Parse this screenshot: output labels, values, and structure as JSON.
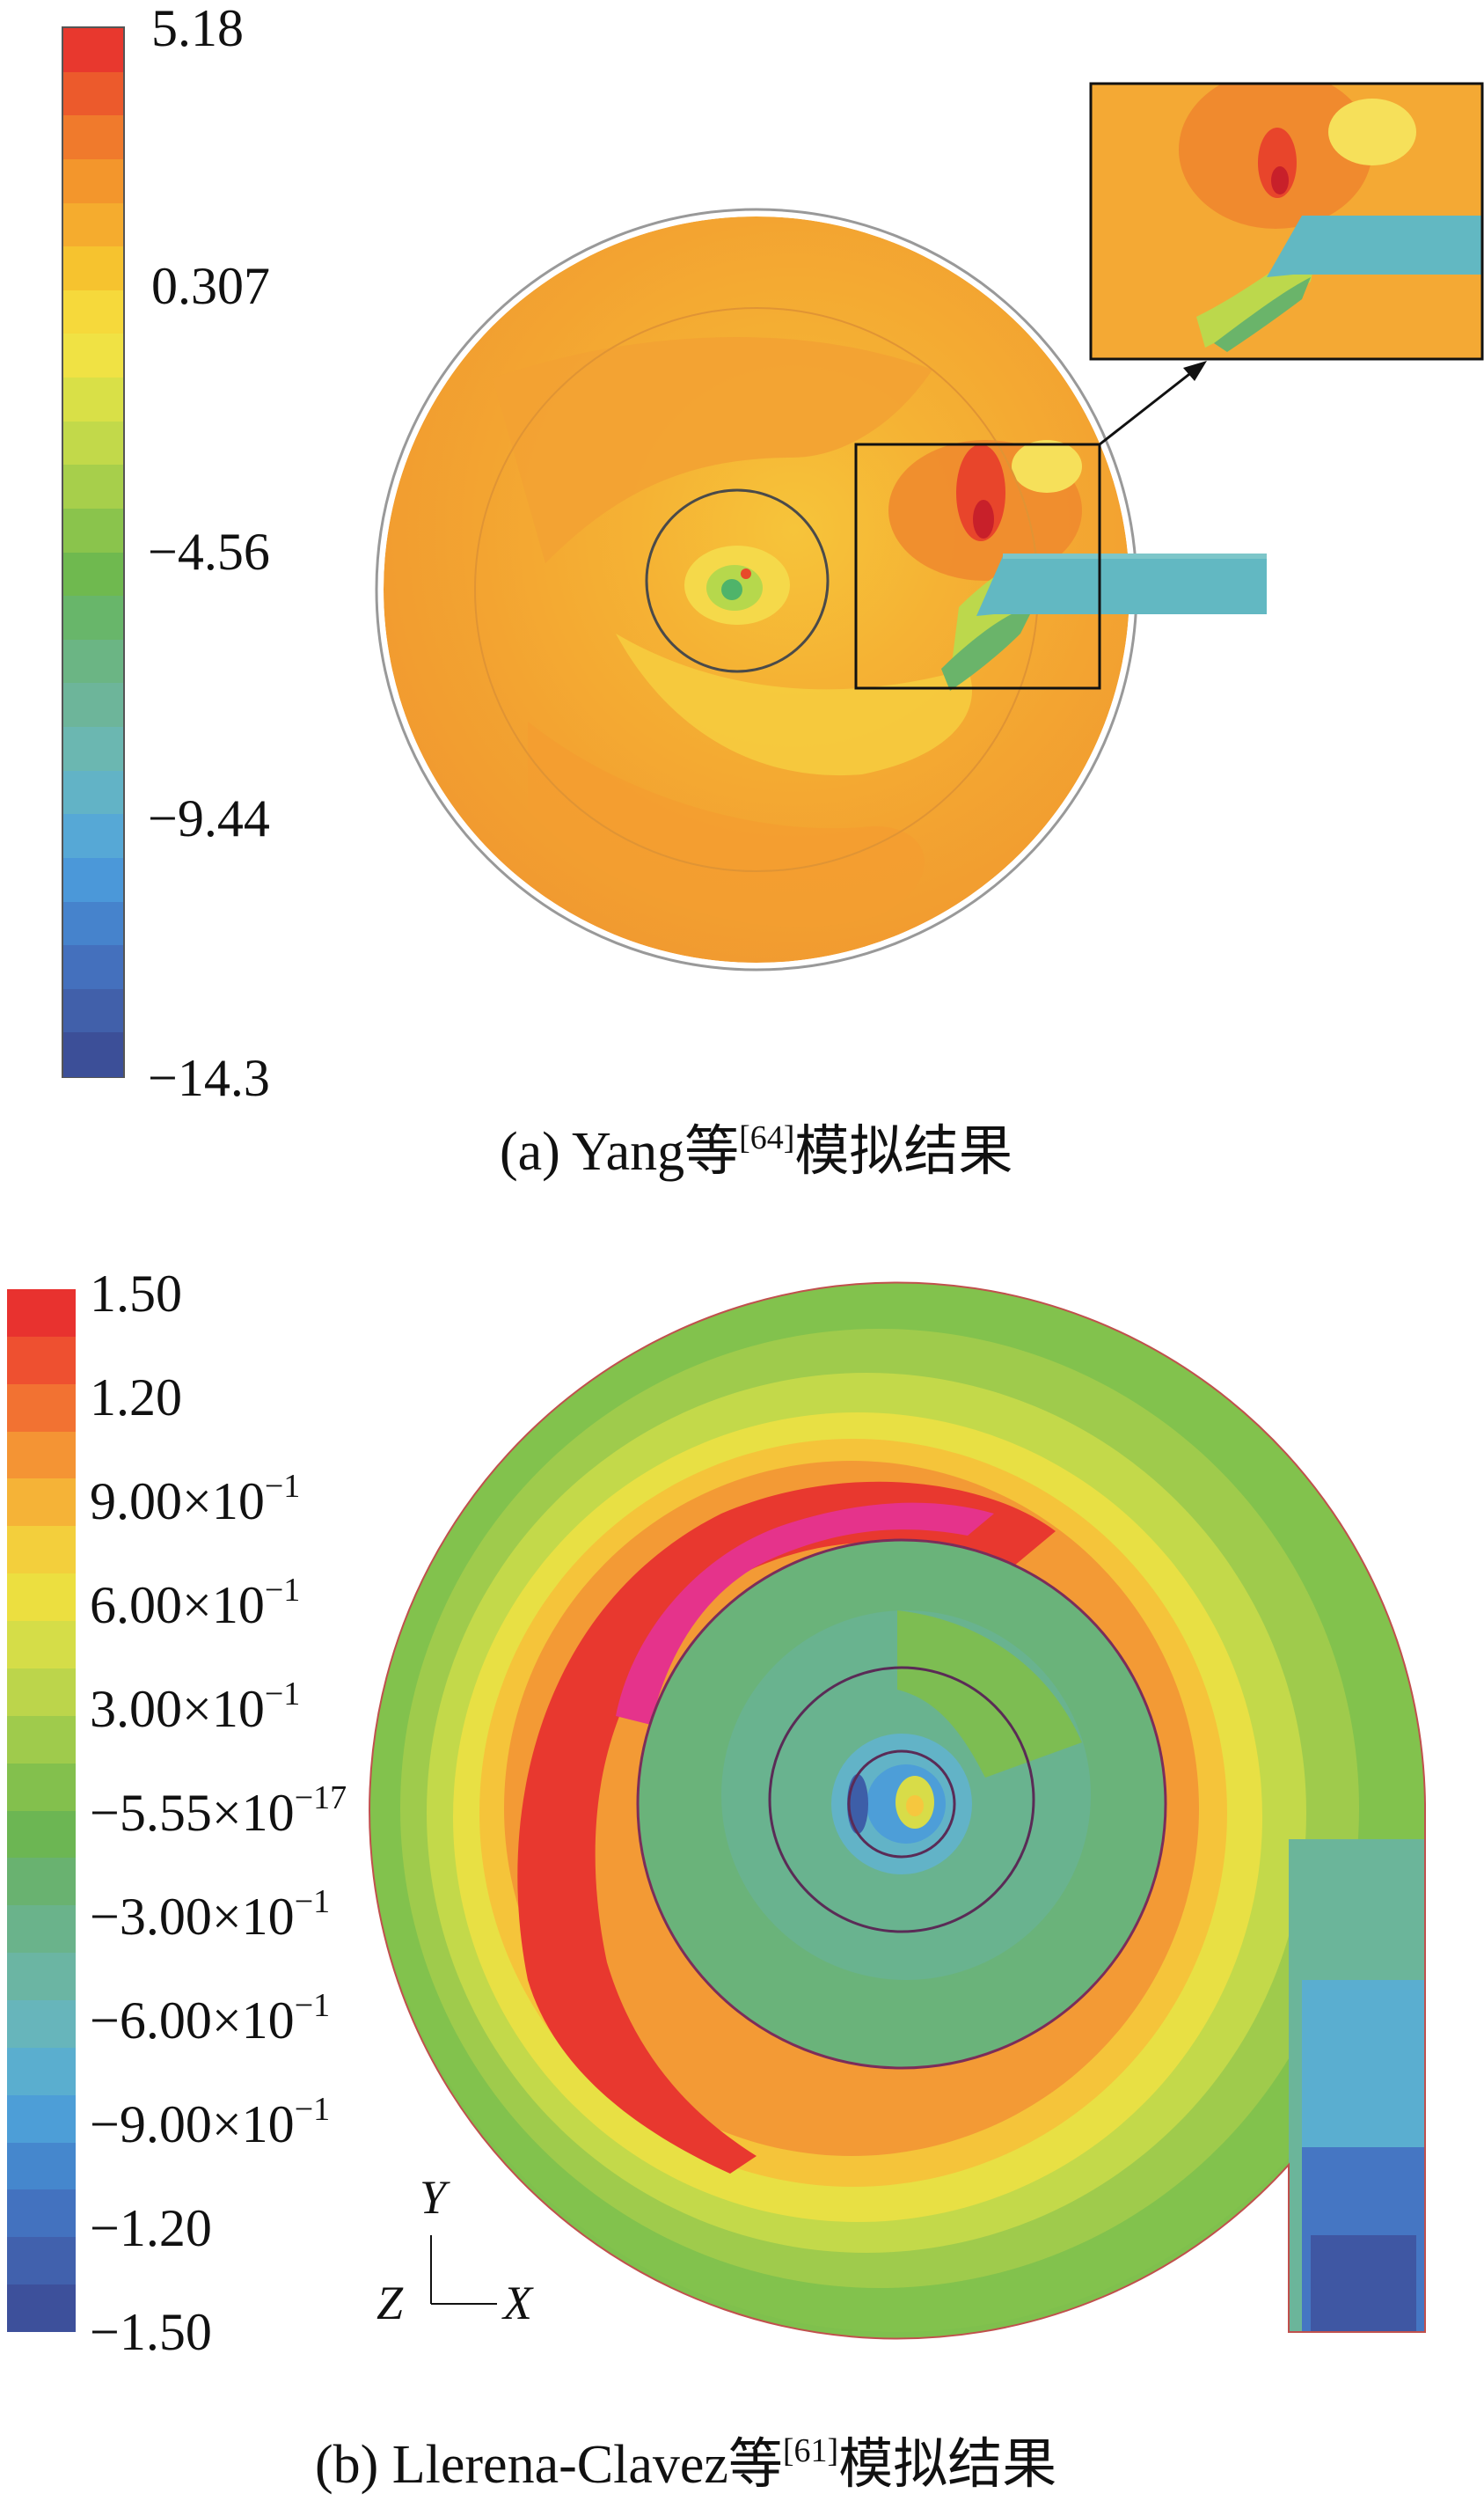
{
  "figure_a": {
    "colorbar_ticks": [
      "5.18",
      "0.307",
      "−4.56",
      "−9.44",
      "−14.3"
    ],
    "caption": {
      "prefix": "(a) Yang等",
      "ref": "[64]",
      "suffix": "模拟结果"
    },
    "colors": [
      "#e8382e",
      "#ec5a2c",
      "#f07a2c",
      "#f3962c",
      "#f5ac2e",
      "#f6c32f",
      "#f6d93b",
      "#f0e244",
      "#d9e047",
      "#c2d94a",
      "#a7cf4b",
      "#8ac44c",
      "#6fb94f",
      "#68b66a",
      "#6bb584",
      "#6db59a",
      "#6bb7b1",
      "#62b3c6",
      "#56a8d6",
      "#4b98d9",
      "#4683cc",
      "#4470bd",
      "#4160aa",
      "#3c4f98"
    ]
  },
  "figure_b": {
    "colorbar_ticks": [
      {
        "mantissa": "1.50",
        "exp": ""
      },
      {
        "mantissa": "1.20",
        "exp": ""
      },
      {
        "mantissa": "9.00×10",
        "exp": "−1"
      },
      {
        "mantissa": "6.00×10",
        "exp": "−1"
      },
      {
        "mantissa": "3.00×10",
        "exp": "−1"
      },
      {
        "mantissa": "−5.55×10",
        "exp": "−17"
      },
      {
        "mantissa": "−3.00×10",
        "exp": "−1"
      },
      {
        "mantissa": "−6.00×10",
        "exp": "−1"
      },
      {
        "mantissa": "−9.00×10",
        "exp": "−1"
      },
      {
        "mantissa": "−1.20",
        "exp": ""
      },
      {
        "mantissa": "−1.50",
        "exp": ""
      }
    ],
    "axes": {
      "y": "Y",
      "z": "Z",
      "x": "X"
    },
    "caption": {
      "prefix": "(b) Llerena-Clavez等",
      "ref": "[61]",
      "suffix": "模拟结果"
    },
    "colors": [
      "#e8322f",
      "#ee5030",
      "#f27232",
      "#f49434",
      "#f5b337",
      "#f3cf3c",
      "#ecdf40",
      "#d5dd48",
      "#bcd54b",
      "#9fcb4c",
      "#83c04d",
      "#6cb653",
      "#69b270",
      "#6ab38b",
      "#6bb5a3",
      "#67b5bb",
      "#5aaecf",
      "#4d9ed7",
      "#4587cd",
      "#4372bf",
      "#4161ad",
      "#3d509b"
    ]
  }
}
